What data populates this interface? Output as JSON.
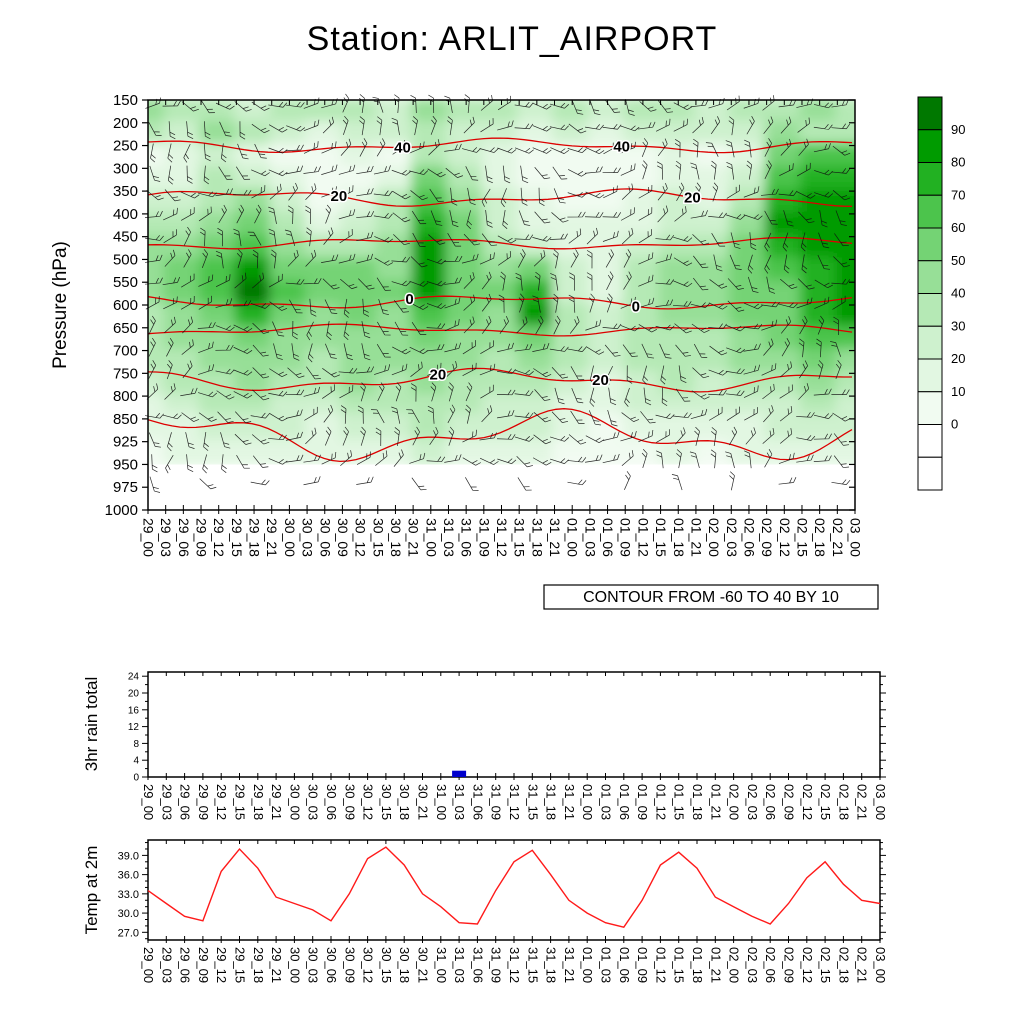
{
  "chart_data": [
    {
      "type": "heatmap",
      "name": "pressure-time-cross-section",
      "title": "Station: ARLIT_AIRPORT",
      "ylabel": "Pressure (hPa)",
      "contour_note": "CONTOUR FROM -60 TO 40 BY 10",
      "y_ticks": [
        150,
        200,
        250,
        300,
        350,
        400,
        450,
        500,
        550,
        600,
        650,
        700,
        750,
        800,
        850,
        925,
        950,
        975,
        1000
      ],
      "x_tick_labels": [
        "29_00",
        "29_03",
        "29_06",
        "29_09",
        "29_12",
        "29_15",
        "29_18",
        "29_21",
        "30_00",
        "30_03",
        "30_06",
        "30_09",
        "30_12",
        "30_15",
        "30_18",
        "30_21",
        "31_00",
        "31_03",
        "31_06",
        "31_09",
        "31_12",
        "31_15",
        "31_18",
        "31_21",
        "01_00",
        "01_03",
        "01_06",
        "01_09",
        "01_12",
        "01_15",
        "01_18",
        "01_21",
        "02_00",
        "02_03",
        "02_06",
        "02_09",
        "02_12",
        "02_15",
        "02_18",
        "02_21",
        "03_00"
      ],
      "colorbar": {
        "tick_labels": [
          90,
          80,
          70,
          60,
          50,
          40,
          30,
          20,
          10,
          0
        ],
        "scale_colors_ascending": [
          "#ffffff",
          "#f1fbf1",
          "#e2f7e2",
          "#cef1ce",
          "#b5e9b5",
          "#97df97",
          "#74d374",
          "#4cc44c",
          "#22b122",
          "#009b00",
          "#007800"
        ],
        "scale_thresholds": [
          5,
          15,
          25,
          35,
          45,
          55,
          65,
          75,
          85,
          93
        ]
      },
      "shading_grid": {
        "pressures": [
          175,
          225,
          275,
          325,
          375,
          425,
          475,
          525,
          575,
          625,
          675,
          725,
          775,
          825,
          875,
          937
        ],
        "time_label_step": 2,
        "values": [
          [
            45,
            35,
            40,
            30,
            35,
            40,
            35,
            30,
            45,
            40,
            35,
            30,
            35,
            30,
            40,
            35,
            30,
            35,
            40,
            45,
            40
          ],
          [
            35,
            30,
            45,
            35,
            25,
            20,
            30,
            25,
            40,
            30,
            25,
            20,
            25,
            20,
            25,
            30,
            25,
            30,
            45,
            40,
            35
          ],
          [
            10,
            15,
            30,
            20,
            10,
            5,
            15,
            10,
            35,
            25,
            15,
            10,
            10,
            5,
            10,
            15,
            10,
            20,
            60,
            70,
            65
          ],
          [
            15,
            20,
            35,
            30,
            15,
            5,
            10,
            20,
            55,
            40,
            20,
            10,
            5,
            5,
            10,
            20,
            15,
            30,
            70,
            80,
            75
          ],
          [
            25,
            30,
            40,
            45,
            25,
            10,
            15,
            35,
            70,
            50,
            25,
            15,
            10,
            10,
            15,
            25,
            20,
            40,
            80,
            88,
            85
          ],
          [
            35,
            40,
            45,
            60,
            35,
            20,
            25,
            40,
            82,
            55,
            30,
            20,
            15,
            15,
            20,
            30,
            30,
            50,
            85,
            92,
            90
          ],
          [
            45,
            50,
            55,
            72,
            45,
            35,
            40,
            45,
            88,
            60,
            40,
            30,
            20,
            20,
            30,
            40,
            40,
            55,
            75,
            85,
            88
          ],
          [
            50,
            55,
            65,
            90,
            60,
            55,
            60,
            50,
            92,
            62,
            50,
            55,
            25,
            15,
            35,
            45,
            45,
            55,
            65,
            75,
            85
          ],
          [
            45,
            55,
            70,
            95,
            65,
            60,
            62,
            55,
            90,
            60,
            55,
            80,
            30,
            18,
            40,
            50,
            50,
            60,
            62,
            80,
            88
          ],
          [
            40,
            50,
            60,
            75,
            55,
            50,
            55,
            50,
            70,
            55,
            50,
            85,
            35,
            25,
            40,
            45,
            45,
            55,
            60,
            82,
            85
          ],
          [
            40,
            45,
            50,
            60,
            50,
            45,
            50,
            48,
            55,
            50,
            45,
            60,
            38,
            30,
            40,
            42,
            40,
            50,
            55,
            70,
            72
          ],
          [
            35,
            42,
            48,
            52,
            45,
            42,
            50,
            45,
            50,
            48,
            42,
            50,
            35,
            28,
            38,
            40,
            38,
            45,
            50,
            55,
            52
          ],
          [
            30,
            38,
            42,
            45,
            40,
            38,
            45,
            42,
            46,
            44,
            38,
            42,
            30,
            22,
            32,
            35,
            32,
            38,
            42,
            45,
            42
          ],
          [
            22,
            30,
            35,
            38,
            32,
            30,
            38,
            35,
            40,
            38,
            30,
            32,
            22,
            15,
            25,
            28,
            25,
            30,
            32,
            35,
            32
          ],
          [
            15,
            22,
            28,
            30,
            25,
            22,
            30,
            28,
            35,
            30,
            25,
            25,
            15,
            10,
            18,
            20,
            18,
            22,
            25,
            28,
            25
          ],
          [
            10,
            15,
            20,
            22,
            18,
            15,
            22,
            20,
            28,
            22,
            18,
            18,
            10,
            8,
            12,
            15,
            12,
            15,
            18,
            20,
            18
          ]
        ]
      },
      "contours": [
        {
          "pressure": 250,
          "label": "40",
          "label_fracs": [
            0.36,
            0.67
          ],
          "amp": 5
        },
        {
          "pressure": 365,
          "label": "20",
          "label_fracs": [
            0.27,
            0.77
          ],
          "amp": 6
        },
        {
          "pressure": 465,
          "label": "",
          "label_fracs": [],
          "amp": 4
        },
        {
          "pressure": 593,
          "label": "0",
          "label_fracs": [
            0.37,
            0.69
          ],
          "amp": 5
        },
        {
          "pressure": 655,
          "label": "",
          "label_fracs": [],
          "amp": 4
        },
        {
          "pressure": 765,
          "label": "20",
          "label_fracs": [
            0.41,
            0.64
          ],
          "amp": 8
        },
        {
          "pressure": 905,
          "label": "",
          "label_fracs": [],
          "amp": 18
        }
      ],
      "has_wind_barbs": true,
      "colors": {
        "contour_line": "#dd0000",
        "contour_label": "#ee0000",
        "barb": "#111111"
      }
    },
    {
      "type": "bar",
      "name": "rain-panel",
      "ylabel": "3hr rain total",
      "y_ticks": [
        0,
        4,
        8,
        12,
        16,
        20,
        24
      ],
      "categories": [
        "29_00",
        "29_03",
        "29_06",
        "29_09",
        "29_12",
        "29_15",
        "29_18",
        "29_21",
        "30_00",
        "30_03",
        "30_06",
        "30_09",
        "30_12",
        "30_15",
        "30_18",
        "30_21",
        "31_00",
        "31_03",
        "31_06",
        "31_09",
        "31_12",
        "31_15",
        "31_18",
        "31_21",
        "01_00",
        "01_03",
        "01_06",
        "01_09",
        "01_12",
        "01_15",
        "01_18",
        "01_21",
        "02_00",
        "02_03",
        "02_06",
        "02_09",
        "02_12",
        "02_15",
        "02_18",
        "02_21",
        "03_00"
      ],
      "values": [
        0,
        0,
        0,
        0,
        0,
        0,
        0,
        0,
        0,
        0,
        0,
        0,
        0,
        0,
        0,
        0,
        0,
        1.5,
        0,
        0,
        0,
        0,
        0,
        0,
        0,
        0,
        0,
        0,
        0,
        0,
        0,
        0,
        0,
        0,
        0,
        0,
        0,
        0,
        0,
        0,
        0
      ],
      "bar_color": "#0000cc",
      "ylim": [
        0,
        25
      ]
    },
    {
      "type": "line",
      "name": "temp-panel",
      "ylabel": "Temp at 2m",
      "y_ticks": [
        27.0,
        30.0,
        33.0,
        36.0,
        39.0
      ],
      "x": [
        "29_00",
        "29_03",
        "29_06",
        "29_09",
        "29_12",
        "29_15",
        "29_18",
        "29_21",
        "30_00",
        "30_03",
        "30_06",
        "30_09",
        "30_12",
        "30_15",
        "30_18",
        "30_21",
        "31_00",
        "31_03",
        "31_06",
        "31_09",
        "31_12",
        "31_15",
        "31_18",
        "31_21",
        "01_00",
        "01_03",
        "01_06",
        "01_09",
        "01_12",
        "01_15",
        "01_18",
        "01_21",
        "02_00",
        "02_03",
        "02_06",
        "02_09",
        "02_12",
        "02_15",
        "02_18",
        "02_21",
        "03_00"
      ],
      "values": [
        33.5,
        31.5,
        29.5,
        28.8,
        36.5,
        40.0,
        37.0,
        32.5,
        31.5,
        30.5,
        28.8,
        33.0,
        38.5,
        40.3,
        37.5,
        33.0,
        31.0,
        28.5,
        28.3,
        33.5,
        38.0,
        39.8,
        36.0,
        32.0,
        30.0,
        28.5,
        27.8,
        32.0,
        37.5,
        39.5,
        37.0,
        32.5,
        31.0,
        29.5,
        28.3,
        31.5,
        35.5,
        38.0,
        34.5,
        32.0,
        31.5
      ],
      "line_color": "#ff1a1a",
      "ylim": [
        25.8,
        41.4
      ]
    }
  ]
}
